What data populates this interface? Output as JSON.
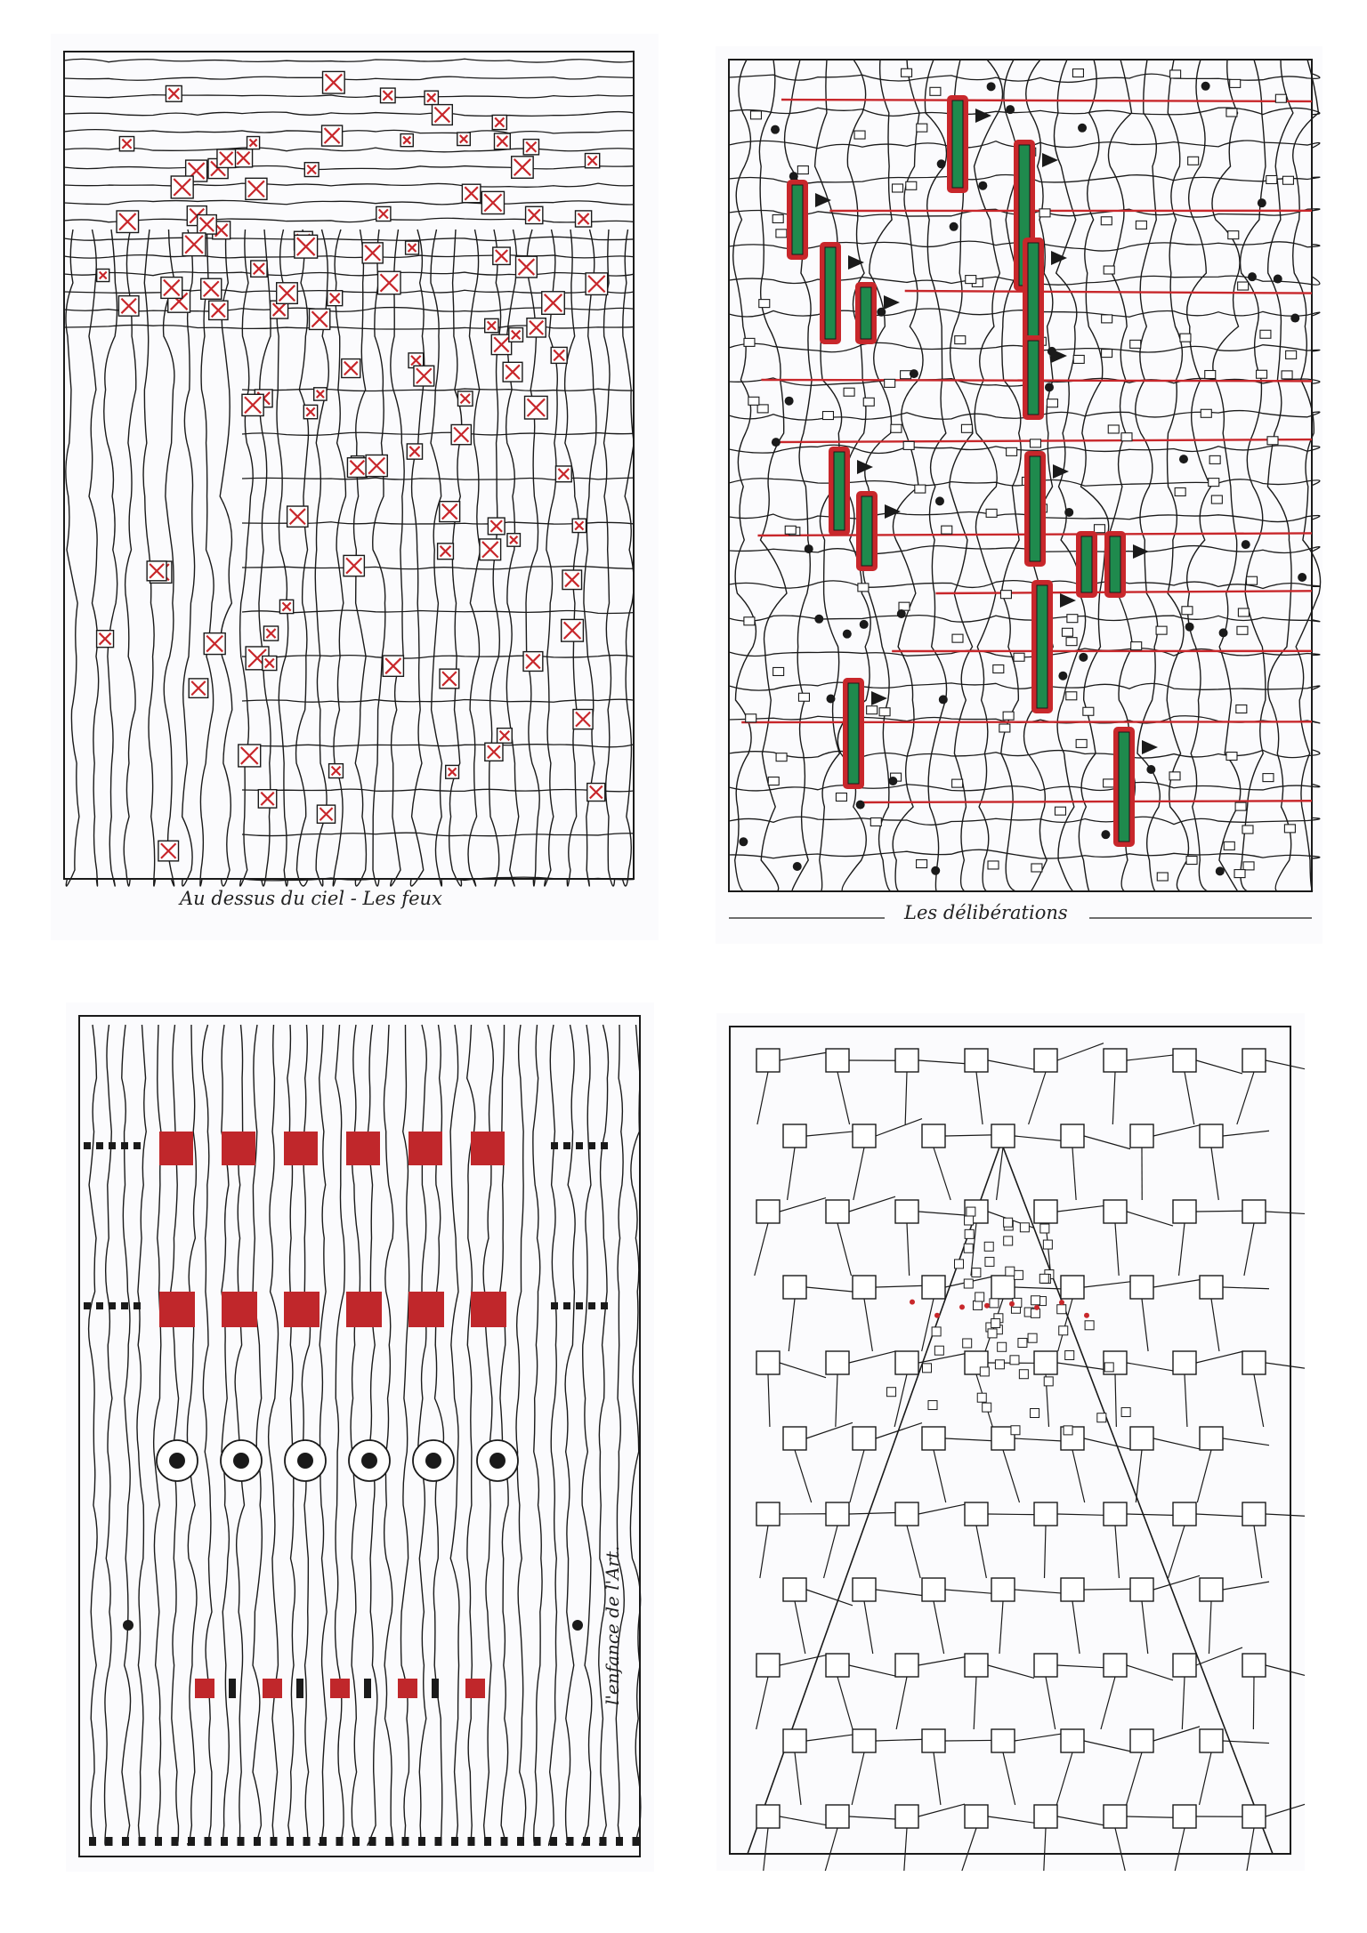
{
  "sheets": [
    {
      "id": "sheet-1",
      "caption": "Au dessus du ciel - Les feux",
      "motif": "red-crossed-squares",
      "accent": "#c8272b"
    },
    {
      "id": "sheet-2",
      "caption": "Les délibérations",
      "motif": "green-bars-red-lines",
      "accent": "#c8272b",
      "secondary": "#1f8a4d"
    },
    {
      "id": "sheet-3",
      "caption": "l'enfance de l'Art.",
      "motif": "red-blocks-lines",
      "accent": "#c0272b"
    },
    {
      "id": "sheet-4",
      "caption": "",
      "motif": "polygon-cone",
      "accent": "#c8272b"
    }
  ],
  "ink": "#1a1a1a"
}
